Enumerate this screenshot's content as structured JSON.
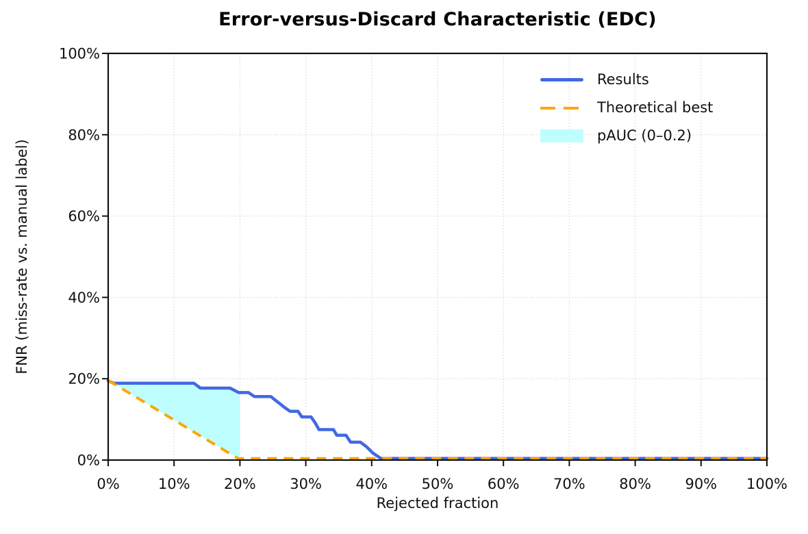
{
  "chart_data": {
    "type": "line",
    "title": "Error-versus-Discard Characteristic (EDC)",
    "xlabel": "Rejected fraction",
    "ylabel": "FNR (miss-rate vs. manual label)",
    "xlim_pct": [
      0,
      100
    ],
    "ylim_pct": [
      0,
      100
    ],
    "x_tick_values": [
      0,
      10,
      20,
      30,
      40,
      50,
      60,
      70,
      80,
      90,
      100
    ],
    "x_tick_labels": [
      "0%",
      "10%",
      "20%",
      "30%",
      "40%",
      "50%",
      "60%",
      "70%",
      "80%",
      "90%",
      "100%"
    ],
    "y_tick_values": [
      0,
      20,
      40,
      60,
      80,
      100
    ],
    "y_tick_labels": [
      "0%",
      "20%",
      "40%",
      "60%",
      "80%",
      "100%"
    ],
    "grid": {
      "style": "dotted",
      "color": "#dcdcdc"
    },
    "axes_color": "#111111",
    "legend_position": "upper right",
    "series": [
      {
        "name": "Results",
        "color": "#4169E1",
        "style": "solid",
        "width": 4.5,
        "points_pct": [
          [
            0,
            19.5
          ],
          [
            0.8,
            18.9
          ],
          [
            13.0,
            18.9
          ],
          [
            14.0,
            17.7
          ],
          [
            18.5,
            17.7
          ],
          [
            19.8,
            16.6
          ],
          [
            21.3,
            16.6
          ],
          [
            22.2,
            15.6
          ],
          [
            24.7,
            15.6
          ],
          [
            25.4,
            14.7
          ],
          [
            26.1,
            13.8
          ],
          [
            26.8,
            12.9
          ],
          [
            27.6,
            12.0
          ],
          [
            28.8,
            12.0
          ],
          [
            29.4,
            10.6
          ],
          [
            30.8,
            10.6
          ],
          [
            31.4,
            9.2
          ],
          [
            32.0,
            7.5
          ],
          [
            34.2,
            7.5
          ],
          [
            34.7,
            6.1
          ],
          [
            36.1,
            6.1
          ],
          [
            36.8,
            4.4
          ],
          [
            38.3,
            4.4
          ],
          [
            39.2,
            3.3
          ],
          [
            40.2,
            1.7
          ],
          [
            41.4,
            0.4
          ],
          [
            100,
            0.4
          ]
        ]
      },
      {
        "name": "Theoretical best",
        "color": "#FFA500",
        "style": "dashed",
        "width": 4,
        "points_pct": [
          [
            0,
            19.6
          ],
          [
            19.7,
            0.4
          ],
          [
            100,
            0.4
          ]
        ]
      }
    ],
    "pauc_region": {
      "label": "pAUC (0–0.2)",
      "color": "#BFFEFF",
      "x_range_pct": [
        0,
        20
      ],
      "upper_bound": "Results",
      "lower_bound": "Theoretical best",
      "polygon_pct": [
        [
          0,
          19.5
        ],
        [
          0.8,
          18.9
        ],
        [
          13.0,
          18.9
        ],
        [
          14.0,
          17.7
        ],
        [
          18.5,
          17.7
        ],
        [
          19.8,
          16.6
        ],
        [
          20,
          16.5
        ],
        [
          20,
          0.4
        ],
        [
          19.7,
          0.4
        ],
        [
          0,
          19.6
        ]
      ]
    }
  }
}
